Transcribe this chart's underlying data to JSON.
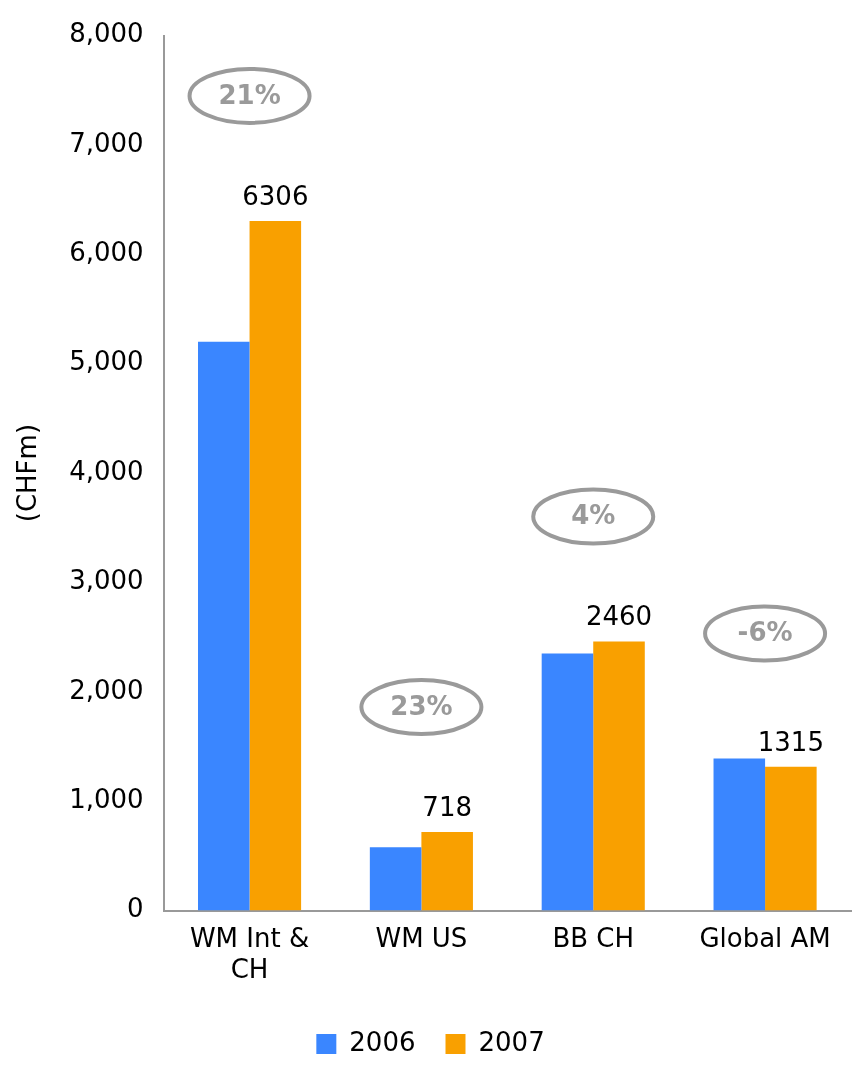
{
  "chart_data": {
    "type": "bar",
    "ylabel": "(CHFm)",
    "categories": [
      "WM Int & CH",
      "WM US",
      "BB CH",
      "Global AM"
    ],
    "series": [
      {
        "name": "2006",
        "color": "#3a86ff",
        "values": [
          5200,
          580,
          2350,
          1390
        ]
      },
      {
        "name": "2007",
        "color": "#f9a000",
        "values": [
          6306,
          718,
          2460,
          1315
        ],
        "value_labels": [
          "6306",
          "718",
          "2460",
          "1315"
        ]
      }
    ],
    "ylim": [
      0,
      8000
    ],
    "yticks": [
      0,
      {
        "value": 1000,
        "label": "1,000"
      },
      {
        "value": 2000,
        "label": "2,000"
      },
      {
        "value": 3000,
        "label": "3,000"
      },
      {
        "value": 4000,
        "label": "4,000"
      },
      {
        "value": 5000,
        "label": "5,000"
      },
      {
        "value": 6000,
        "label": "6,000"
      },
      {
        "value": 7000,
        "label": "7,000"
      },
      {
        "value": 8000,
        "label": "8,000"
      }
    ],
    "annotations": [
      "21%",
      "23%",
      "4%",
      "-6%"
    ],
    "grid": false,
    "legend": "bottom"
  }
}
